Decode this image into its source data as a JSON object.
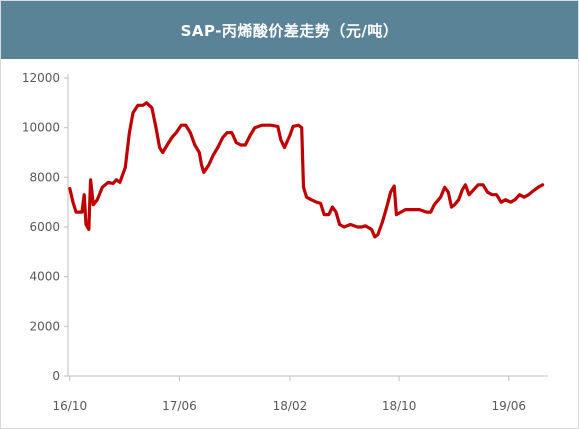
{
  "colors": {
    "banner": "#5b8397",
    "line": "#c00000",
    "axis": "#bfbfbf",
    "text": "#595959"
  },
  "chart_data": {
    "type": "line",
    "title": "SAP-丙烯酸价差走势（元/吨）",
    "ylim": [
      0,
      12000
    ],
    "y_ticks": [
      "0",
      "2000",
      "4000",
      "6000",
      "8000",
      "10000",
      "12000"
    ],
    "x_ticks": [
      {
        "label": "16/10",
        "x": "2016-10"
      },
      {
        "label": "17/06",
        "x": "2017-06"
      },
      {
        "label": "18/02",
        "x": "2018-02"
      },
      {
        "label": "18/10",
        "x": "2018-10"
      },
      {
        "label": "19/06",
        "x": "2019-06"
      }
    ],
    "grid": false,
    "series": [
      {
        "color": "#c00000",
        "points": [
          [
            "2016-10-01",
            7550
          ],
          [
            "2016-10-08",
            7000
          ],
          [
            "2016-10-15",
            6600
          ],
          [
            "2016-10-28",
            6600
          ],
          [
            "2016-11-02",
            7300
          ],
          [
            "2016-11-06",
            6100
          ],
          [
            "2016-11-12",
            5900
          ],
          [
            "2016-11-16",
            7900
          ],
          [
            "2016-11-22",
            6900
          ],
          [
            "2016-12-01",
            7100
          ],
          [
            "2016-12-12",
            7600
          ],
          [
            "2016-12-25",
            7800
          ],
          [
            "2017-01-05",
            7750
          ],
          [
            "2017-01-12",
            7900
          ],
          [
            "2017-01-20",
            7800
          ],
          [
            "2017-02-01",
            8400
          ],
          [
            "2017-02-10",
            9800
          ],
          [
            "2017-02-18",
            10600
          ],
          [
            "2017-03-01",
            10900
          ],
          [
            "2017-03-12",
            10900
          ],
          [
            "2017-03-20",
            11000
          ],
          [
            "2017-04-01",
            10800
          ],
          [
            "2017-04-10",
            10000
          ],
          [
            "2017-04-18",
            9200
          ],
          [
            "2017-04-25",
            9000
          ],
          [
            "2017-05-05",
            9300
          ],
          [
            "2017-05-15",
            9600
          ],
          [
            "2017-05-25",
            9800
          ],
          [
            "2017-06-05",
            10100
          ],
          [
            "2017-06-15",
            10100
          ],
          [
            "2017-06-25",
            9800
          ],
          [
            "2017-07-05",
            9300
          ],
          [
            "2017-07-15",
            9000
          ],
          [
            "2017-07-20",
            8500
          ],
          [
            "2017-07-25",
            8200
          ],
          [
            "2017-08-05",
            8500
          ],
          [
            "2017-08-15",
            8900
          ],
          [
            "2017-08-25",
            9200
          ],
          [
            "2017-09-05",
            9600
          ],
          [
            "2017-09-15",
            9800
          ],
          [
            "2017-09-25",
            9800
          ],
          [
            "2017-10-05",
            9400
          ],
          [
            "2017-10-15",
            9300
          ],
          [
            "2017-10-25",
            9300
          ],
          [
            "2017-11-05",
            9700
          ],
          [
            "2017-11-15",
            10000
          ],
          [
            "2017-12-01",
            10100
          ],
          [
            "2017-12-20",
            10100
          ],
          [
            "2018-01-05",
            10050
          ],
          [
            "2018-01-12",
            9500
          ],
          [
            "2018-01-20",
            9200
          ],
          [
            "2018-02-01",
            9700
          ],
          [
            "2018-02-08",
            10050
          ],
          [
            "2018-02-20",
            10100
          ],
          [
            "2018-02-27",
            10000
          ],
          [
            "2018-03-03",
            7600
          ],
          [
            "2018-03-10",
            7200
          ],
          [
            "2018-03-20",
            7100
          ],
          [
            "2018-04-01",
            7000
          ],
          [
            "2018-04-10",
            6950
          ],
          [
            "2018-04-18",
            6500
          ],
          [
            "2018-04-28",
            6500
          ],
          [
            "2018-05-06",
            6800
          ],
          [
            "2018-05-14",
            6600
          ],
          [
            "2018-05-22",
            6100
          ],
          [
            "2018-06-01",
            6000
          ],
          [
            "2018-06-15",
            6100
          ],
          [
            "2018-07-01",
            6000
          ],
          [
            "2018-07-10",
            6000
          ],
          [
            "2018-07-18",
            6050
          ],
          [
            "2018-08-01",
            5900
          ],
          [
            "2018-08-08",
            5600
          ],
          [
            "2018-08-15",
            5700
          ],
          [
            "2018-08-25",
            6200
          ],
          [
            "2018-09-05",
            6900
          ],
          [
            "2018-09-12",
            7400
          ],
          [
            "2018-09-20",
            7650
          ],
          [
            "2018-09-25",
            6500
          ],
          [
            "2018-10-05",
            6600
          ],
          [
            "2018-10-15",
            6700
          ],
          [
            "2018-11-01",
            6700
          ],
          [
            "2018-11-15",
            6700
          ],
          [
            "2018-12-01",
            6600
          ],
          [
            "2018-12-10",
            6600
          ],
          [
            "2018-12-18",
            6900
          ],
          [
            "2019-01-01",
            7200
          ],
          [
            "2019-01-10",
            7600
          ],
          [
            "2019-01-18",
            7400
          ],
          [
            "2019-01-25",
            6800
          ],
          [
            "2019-02-01",
            6900
          ],
          [
            "2019-02-10",
            7100
          ],
          [
            "2019-02-18",
            7500
          ],
          [
            "2019-02-25",
            7700
          ],
          [
            "2019-03-05",
            7300
          ],
          [
            "2019-03-15",
            7500
          ],
          [
            "2019-03-25",
            7700
          ],
          [
            "2019-04-05",
            7700
          ],
          [
            "2019-04-15",
            7400
          ],
          [
            "2019-04-25",
            7300
          ],
          [
            "2019-05-05",
            7300
          ],
          [
            "2019-05-15",
            7000
          ],
          [
            "2019-05-25",
            7100
          ],
          [
            "2019-06-05",
            7000
          ],
          [
            "2019-06-15",
            7100
          ],
          [
            "2019-06-25",
            7300
          ],
          [
            "2019-07-05",
            7200
          ],
          [
            "2019-07-15",
            7300
          ],
          [
            "2019-07-25",
            7450
          ],
          [
            "2019-08-05",
            7600
          ],
          [
            "2019-08-15",
            7700
          ]
        ]
      }
    ]
  }
}
